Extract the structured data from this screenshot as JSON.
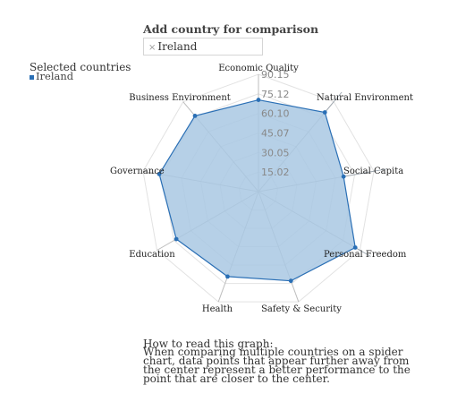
{
  "compare": {
    "title": "Add country for comparison",
    "remove_glyph": "×",
    "chip_label": "Ireland"
  },
  "legend": {
    "title": "Selected countries",
    "items": [
      {
        "label": "Ireland"
      }
    ]
  },
  "howto": {
    "title": "How to read this graph:",
    "body": "When comparing multiple countries on a spider chart, data points that appear further away from the center represent a better performance to the point that are closer to the center."
  },
  "colors": {
    "fill": "#a9c8e3",
    "stroke": "#2a6fb5",
    "grid": "#e2e2e2",
    "axis": "#bdbdbd"
  },
  "chart_data": {
    "type": "radar",
    "axes": [
      "Economic Quality",
      "Natural Environment",
      "Social Capita",
      "Personal Freedom",
      "Safety & Security",
      "Health",
      "Education",
      "Governance",
      "Business Environment"
    ],
    "tick_values": [
      "15.02",
      "30.05",
      "45.07",
      "60.10",
      "75.12",
      "90.15"
    ],
    "range": [
      0,
      90.15
    ],
    "series": [
      {
        "name": "Ireland",
        "values": [
          70.5,
          79.5,
          66.5,
          86.0,
          73.0,
          69.5,
          73.0,
          77.5,
          76.0
        ]
      }
    ]
  }
}
